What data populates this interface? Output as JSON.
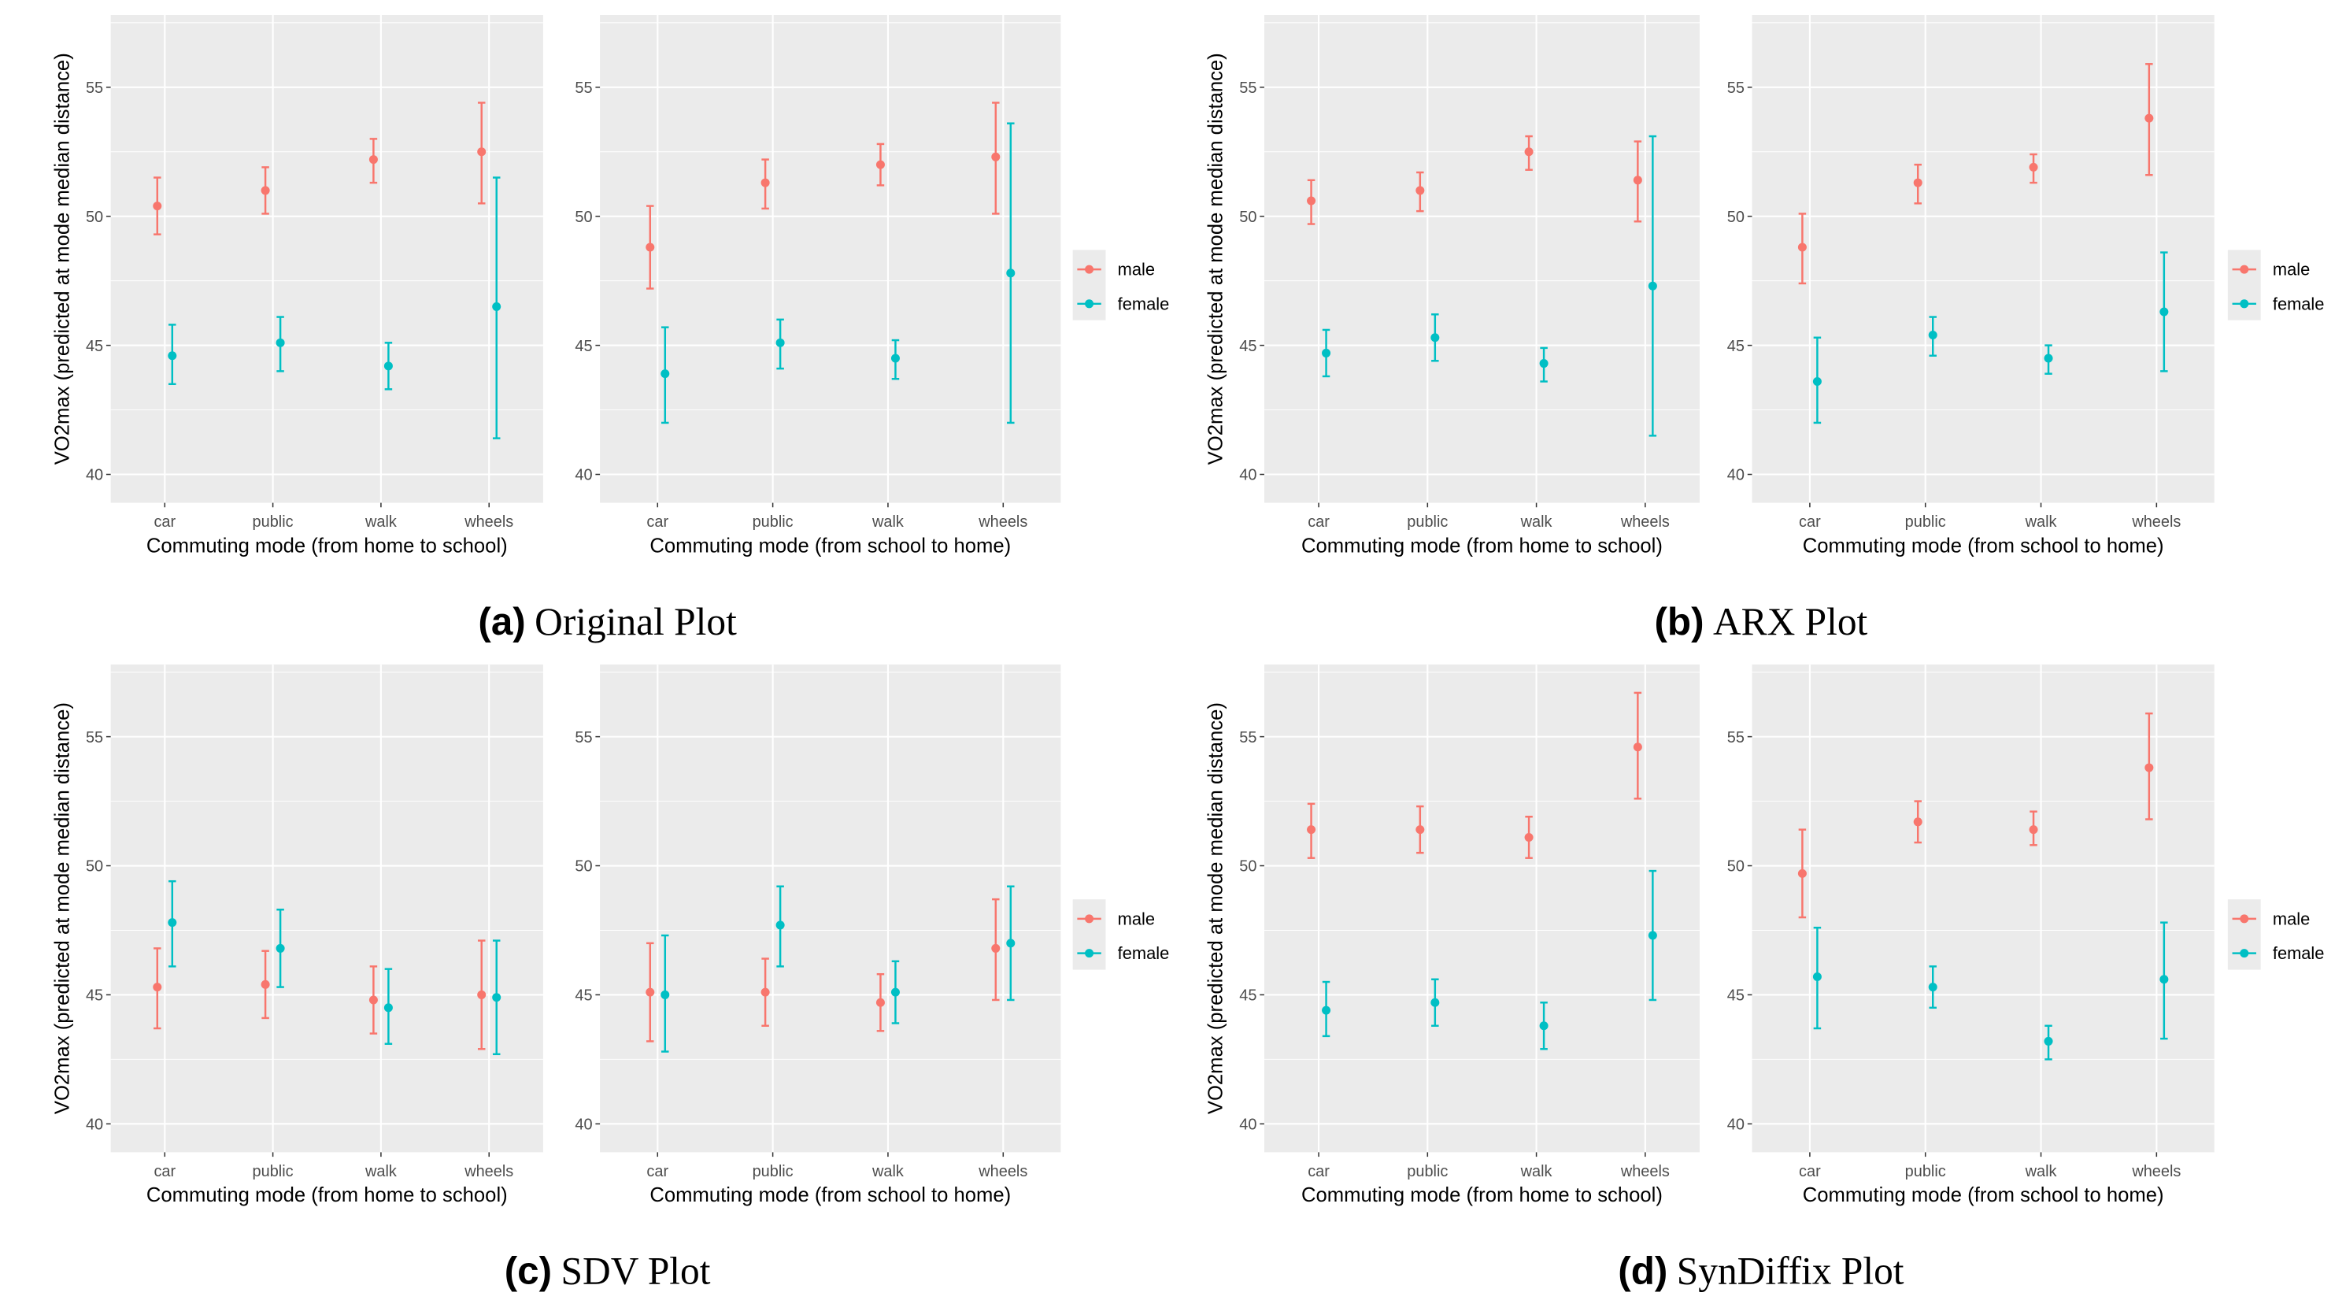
{
  "colors": {
    "male": "#F8766D",
    "female": "#00BFC4",
    "panel_bg": "#EBEBEB",
    "grid": "#FFFFFF",
    "axis_text": "#4D4D4D",
    "text": "#000000"
  },
  "y_axis_label": "VO2max (predicted at mode median distance)",
  "legend": {
    "male": "male",
    "female": "female"
  },
  "captions": [
    {
      "letter": "(a)",
      "text": "Original Plot"
    },
    {
      "letter": "(b)",
      "text": "ARX Plot"
    },
    {
      "letter": "(c)",
      "text": "SDV Plot"
    },
    {
      "letter": "(d)",
      "text": "SynDiffix Plot"
    }
  ],
  "chart_data": [
    {
      "figure": "a",
      "type": "scatter",
      "subtype": "point-errorbar",
      "xlabel": "Commuting mode (from home to school)",
      "ylabel": "VO2max (predicted at mode median distance)",
      "categories": [
        "car",
        "public",
        "walk",
        "wheels"
      ],
      "ylim": [
        38.9,
        57.8
      ],
      "yticks": [
        40,
        45,
        50,
        55
      ],
      "grid": true,
      "legend_position": "right",
      "series": [
        {
          "name": "male",
          "values": [
            50.4,
            51.0,
            52.2,
            52.5
          ],
          "lower": [
            49.3,
            50.1,
            51.3,
            50.5
          ],
          "upper": [
            51.5,
            51.9,
            53.0,
            54.4
          ]
        },
        {
          "name": "female",
          "values": [
            44.6,
            45.1,
            44.2,
            46.5
          ],
          "lower": [
            43.5,
            44.0,
            43.3,
            41.4
          ],
          "upper": [
            45.8,
            46.1,
            45.1,
            51.5
          ]
        }
      ]
    },
    {
      "figure": "a",
      "type": "scatter",
      "subtype": "point-errorbar",
      "xlabel": "Commuting mode (from school to home)",
      "ylabel": "",
      "categories": [
        "car",
        "public",
        "walk",
        "wheels"
      ],
      "ylim": [
        38.9,
        57.8
      ],
      "yticks": [
        40,
        45,
        50,
        55
      ],
      "grid": true,
      "legend_position": "right",
      "series": [
        {
          "name": "male",
          "values": [
            48.8,
            51.3,
            52.0,
            52.3
          ],
          "lower": [
            47.2,
            50.3,
            51.2,
            50.1
          ],
          "upper": [
            50.4,
            52.2,
            52.8,
            54.4
          ]
        },
        {
          "name": "female",
          "values": [
            43.9,
            45.1,
            44.5,
            47.8
          ],
          "lower": [
            42.0,
            44.1,
            43.7,
            42.0
          ],
          "upper": [
            45.7,
            46.0,
            45.2,
            53.6
          ]
        }
      ]
    },
    {
      "figure": "b",
      "type": "scatter",
      "subtype": "point-errorbar",
      "xlabel": "Commuting mode (from home to school)",
      "ylabel": "VO2max (predicted at mode median distance)",
      "categories": [
        "car",
        "public",
        "walk",
        "wheels"
      ],
      "ylim": [
        38.9,
        57.8
      ],
      "yticks": [
        40,
        45,
        50,
        55
      ],
      "grid": true,
      "legend_position": "right",
      "series": [
        {
          "name": "male",
          "values": [
            50.6,
            51.0,
            52.5,
            51.4
          ],
          "lower": [
            49.7,
            50.2,
            51.8,
            49.8
          ],
          "upper": [
            51.4,
            51.7,
            53.1,
            52.9
          ]
        },
        {
          "name": "female",
          "values": [
            44.7,
            45.3,
            44.3,
            47.3
          ],
          "lower": [
            43.8,
            44.4,
            43.6,
            41.5
          ],
          "upper": [
            45.6,
            46.2,
            44.9,
            53.1
          ]
        }
      ]
    },
    {
      "figure": "b",
      "type": "scatter",
      "subtype": "point-errorbar",
      "xlabel": "Commuting mode (from school to home)",
      "ylabel": "",
      "categories": [
        "car",
        "public",
        "walk",
        "wheels"
      ],
      "ylim": [
        38.9,
        57.8
      ],
      "yticks": [
        40,
        45,
        50,
        55
      ],
      "grid": true,
      "legend_position": "right",
      "series": [
        {
          "name": "male",
          "values": [
            48.8,
            51.3,
            51.9,
            53.8
          ],
          "lower": [
            47.4,
            50.5,
            51.3,
            51.6
          ],
          "upper": [
            50.1,
            52.0,
            52.4,
            55.9
          ]
        },
        {
          "name": "female",
          "values": [
            43.6,
            45.4,
            44.5,
            46.3
          ],
          "lower": [
            42.0,
            44.6,
            43.9,
            44.0
          ],
          "upper": [
            45.3,
            46.1,
            45.0,
            48.6
          ]
        }
      ]
    },
    {
      "figure": "c",
      "type": "scatter",
      "subtype": "point-errorbar",
      "xlabel": "Commuting mode (from home to school)",
      "ylabel": "VO2max (predicted at mode median distance)",
      "categories": [
        "car",
        "public",
        "walk",
        "wheels"
      ],
      "ylim": [
        38.9,
        57.8
      ],
      "yticks": [
        40,
        45,
        50,
        55
      ],
      "grid": true,
      "legend_position": "right",
      "series": [
        {
          "name": "male",
          "values": [
            45.3,
            45.4,
            44.8,
            45.0
          ],
          "lower": [
            43.7,
            44.1,
            43.5,
            42.9
          ],
          "upper": [
            46.8,
            46.7,
            46.1,
            47.1
          ]
        },
        {
          "name": "female",
          "values": [
            47.8,
            46.8,
            44.5,
            44.9
          ],
          "lower": [
            46.1,
            45.3,
            43.1,
            42.7
          ],
          "upper": [
            49.4,
            48.3,
            46.0,
            47.1
          ]
        }
      ]
    },
    {
      "figure": "c",
      "type": "scatter",
      "subtype": "point-errorbar",
      "xlabel": "Commuting mode (from school to home)",
      "ylabel": "",
      "categories": [
        "car",
        "public",
        "walk",
        "wheels"
      ],
      "ylim": [
        38.9,
        57.8
      ],
      "yticks": [
        40,
        45,
        50,
        55
      ],
      "grid": true,
      "legend_position": "right",
      "series": [
        {
          "name": "male",
          "values": [
            45.1,
            45.1,
            44.7,
            46.8
          ],
          "lower": [
            43.2,
            43.8,
            43.6,
            44.8
          ],
          "upper": [
            47.0,
            46.4,
            45.8,
            48.7
          ]
        },
        {
          "name": "female",
          "values": [
            45.0,
            47.7,
            45.1,
            47.0
          ],
          "lower": [
            42.8,
            46.1,
            43.9,
            44.8
          ],
          "upper": [
            47.3,
            49.2,
            46.3,
            49.2
          ]
        }
      ]
    },
    {
      "figure": "d",
      "type": "scatter",
      "subtype": "point-errorbar",
      "xlabel": "Commuting mode (from home to school)",
      "ylabel": "VO2max (predicted at mode median distance)",
      "categories": [
        "car",
        "public",
        "walk",
        "wheels"
      ],
      "ylim": [
        38.9,
        57.8
      ],
      "yticks": [
        40,
        45,
        50,
        55
      ],
      "grid": true,
      "legend_position": "right",
      "series": [
        {
          "name": "male",
          "values": [
            51.4,
            51.4,
            51.1,
            54.6
          ],
          "lower": [
            50.3,
            50.5,
            50.3,
            52.6
          ],
          "upper": [
            52.4,
            52.3,
            51.9,
            56.7
          ]
        },
        {
          "name": "female",
          "values": [
            44.4,
            44.7,
            43.8,
            47.3
          ],
          "lower": [
            43.4,
            43.8,
            42.9,
            44.8
          ],
          "upper": [
            45.5,
            45.6,
            44.7,
            49.8
          ]
        }
      ]
    },
    {
      "figure": "d",
      "type": "scatter",
      "subtype": "point-errorbar",
      "xlabel": "Commuting mode (from school to home)",
      "ylabel": "",
      "categories": [
        "car",
        "public",
        "walk",
        "wheels"
      ],
      "ylim": [
        38.9,
        57.8
      ],
      "yticks": [
        40,
        45,
        50,
        55
      ],
      "grid": true,
      "legend_position": "right",
      "series": [
        {
          "name": "male",
          "values": [
            49.7,
            51.7,
            51.4,
            53.8
          ],
          "lower": [
            48.0,
            50.9,
            50.8,
            51.8
          ],
          "upper": [
            51.4,
            52.5,
            52.1,
            55.9
          ]
        },
        {
          "name": "female",
          "values": [
            45.7,
            45.3,
            43.2,
            45.6
          ],
          "lower": [
            43.7,
            44.5,
            42.5,
            43.3
          ],
          "upper": [
            47.6,
            46.1,
            43.8,
            47.8
          ]
        }
      ]
    }
  ]
}
